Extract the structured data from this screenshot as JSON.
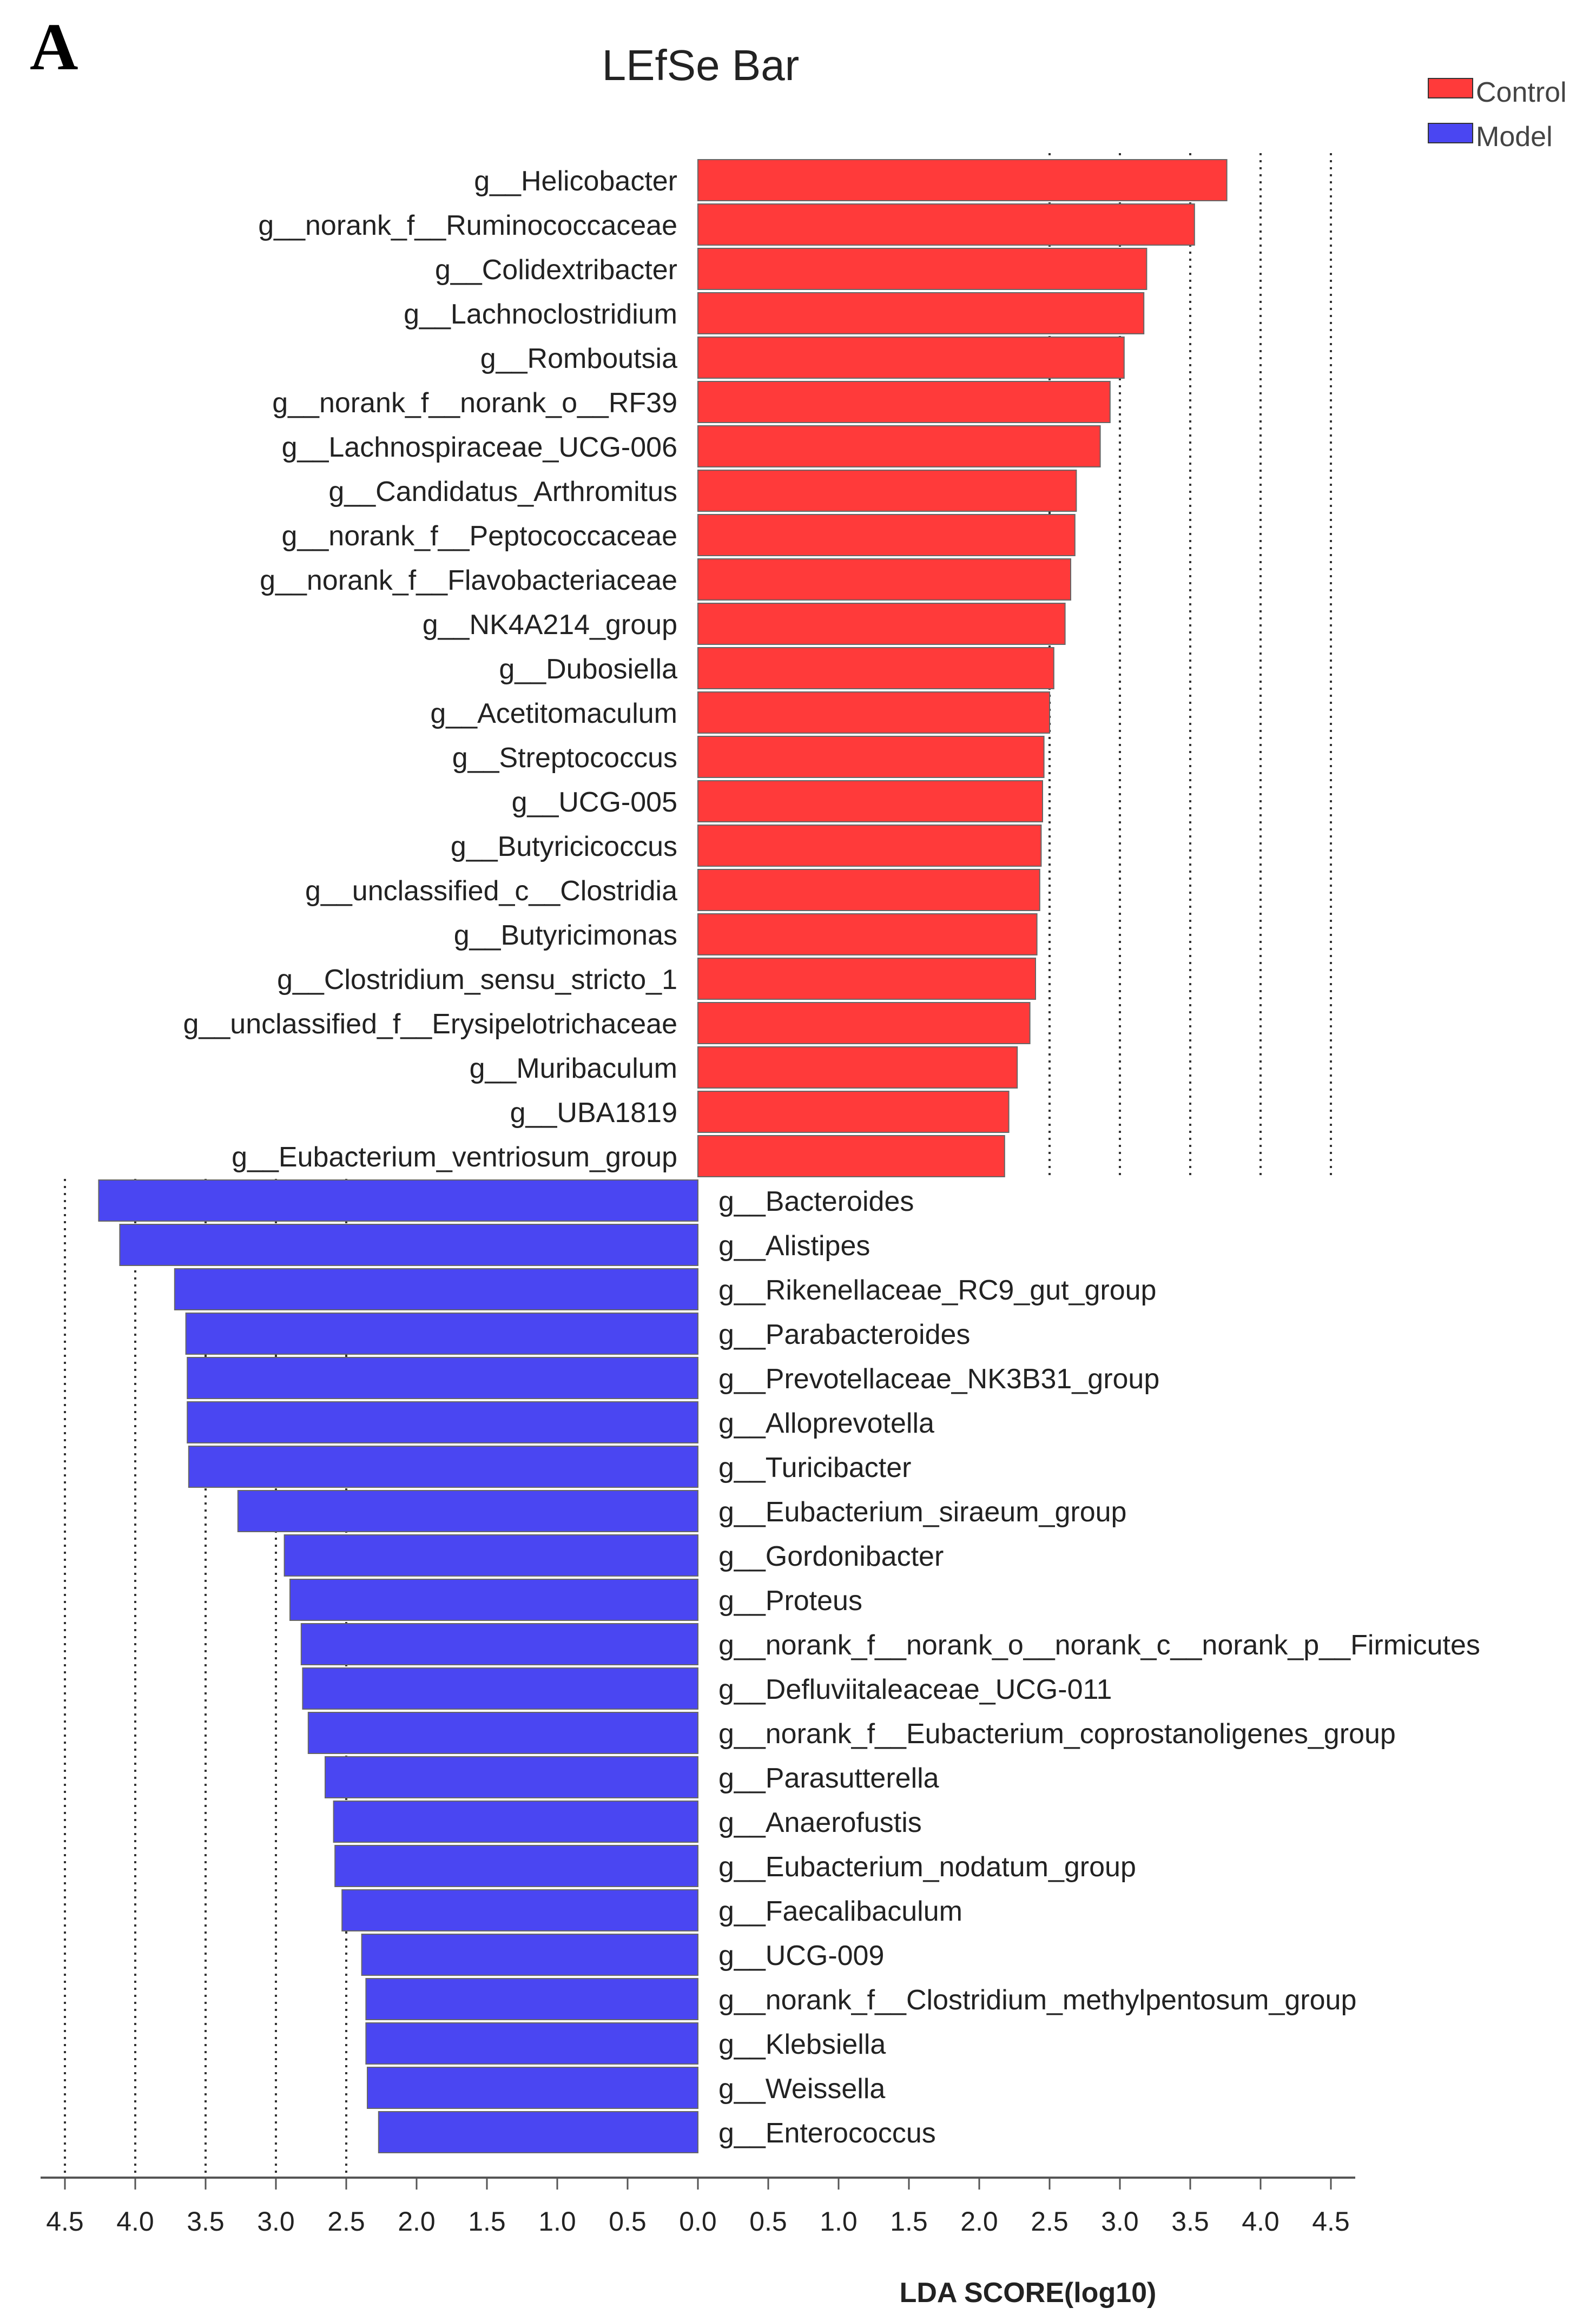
{
  "panel_label": "A",
  "chart_data": {
    "type": "bar",
    "title": "LEfSe Bar",
    "xlabel": "LDA SCORE(log10)",
    "xlim": [
      0,
      4.5
    ],
    "tick_values": [
      4.5,
      4.0,
      3.5,
      3.0,
      2.5,
      2.0,
      1.5,
      1.0,
      0.5,
      0.0,
      0.5,
      1.0,
      1.5,
      2.0,
      2.5,
      3.0,
      3.5,
      4.0,
      4.5
    ],
    "tick_labels": [
      "4.5",
      "4.0",
      "3.5",
      "3.0",
      "2.5",
      "2.0",
      "1.5",
      "1.0",
      "0.5",
      "0.0",
      "0.5",
      "1.0",
      "1.5",
      "2.0",
      "2.5",
      "3.0",
      "3.5",
      "4.0",
      "4.5"
    ],
    "gridlines": [
      2.5,
      3.0,
      3.5,
      4.0,
      4.5
    ],
    "legend": [
      {
        "name": "Control",
        "color": "#ff3a3a"
      },
      {
        "name": "Model",
        "color": "#4a46f2"
      }
    ],
    "series": [
      {
        "name": "Control",
        "color": "#ff3a3a",
        "categories": [
          "g__Helicobacter",
          "g__norank_f__Ruminococcaceae",
          "g__Colidextribacter",
          "g__Lachnoclostridium",
          "g__Romboutsia",
          "g__norank_f__norank_o__RF39",
          "g__Lachnospiraceae_UCG-006",
          "g__Candidatus_Arthromitus",
          "g__norank_f__Peptococcaceae",
          "g__norank_f__Flavobacteriaceae",
          "g__NK4A214_group",
          "g__Dubosiella",
          "g__Acetitomaculum",
          "g__Streptococcus",
          "g__UCG-005",
          "g__Butyricicoccus",
          "g__unclassified_c__Clostridia",
          "g__Butyricimonas",
          "g__Clostridium_sensu_stricto_1",
          "g__unclassified_f__Erysipelotrichaceae",
          "g__Muribaculum",
          "g__UBA1819",
          "g__Eubacterium_ventriosum_group"
        ],
        "values": [
          3.76,
          3.53,
          3.19,
          3.17,
          3.03,
          2.93,
          2.86,
          2.69,
          2.68,
          2.65,
          2.61,
          2.53,
          2.5,
          2.46,
          2.45,
          2.44,
          2.43,
          2.41,
          2.4,
          2.36,
          2.27,
          2.21,
          2.18
        ]
      },
      {
        "name": "Model",
        "color": "#4a46f2",
        "categories": [
          "g__Bacteroides",
          "g__Alistipes",
          "g__Rikenellaceae_RC9_gut_group",
          "g__Parabacteroides",
          "g__Prevotellaceae_NK3B31_group",
          "g__Alloprevotella",
          "g__Turicibacter",
          "g__Eubacterium_siraeum_group",
          "g__Gordonibacter",
          "g__Proteus",
          "g__norank_f__norank_o__norank_c__norank_p__Firmicutes",
          "g__Defluviitaleaceae_UCG-011",
          "g__norank_f__Eubacterium_coprostanoligenes_group",
          "g__Parasutterella",
          "g__Anaerofustis",
          "g__Eubacterium_nodatum_group",
          "g__Faecalibaculum",
          "g__UCG-009",
          "g__norank_f__Clostridium_methylpentosum_group",
          "g__Klebsiella",
          "g__Weissella",
          "g__Enterococcus"
        ],
        "values": [
          4.26,
          4.11,
          3.72,
          3.64,
          3.63,
          3.63,
          3.62,
          3.27,
          2.94,
          2.9,
          2.82,
          2.81,
          2.77,
          2.65,
          2.59,
          2.58,
          2.53,
          2.39,
          2.36,
          2.36,
          2.35,
          2.27
        ]
      }
    ]
  }
}
